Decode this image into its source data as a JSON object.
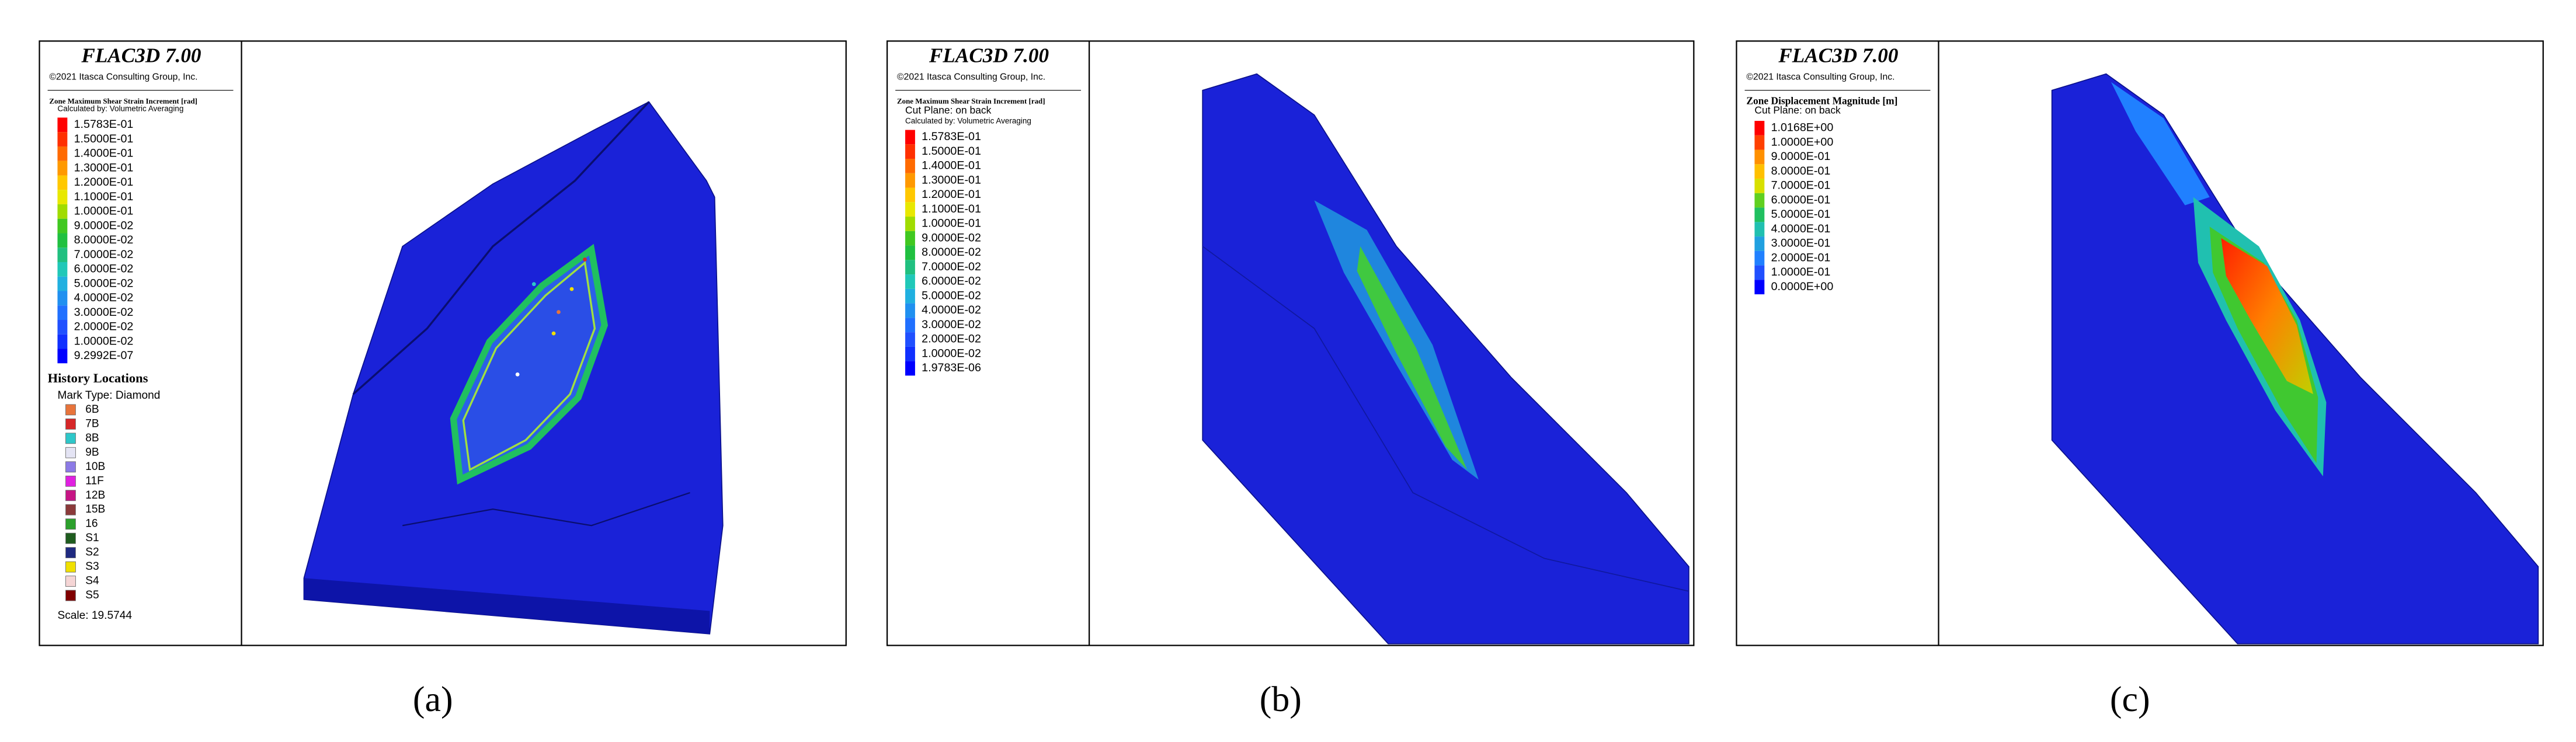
{
  "panels": [
    {
      "title": "FLAC3D 7.00",
      "copyright": "©2021 Itasca Consulting Group, Inc.",
      "legend_title": "Zone Maximum Shear Strain Increment [rad]",
      "notes": [
        "Calculated by: Volumetric Averaging"
      ],
      "legend": [
        {
          "label": "1.5783E-01",
          "color": "#ff0000"
        },
        {
          "label": "1.5000E-01",
          "color": "#ff3000"
        },
        {
          "label": "1.4000E-01",
          "color": "#ff6a00"
        },
        {
          "label": "1.3000E-01",
          "color": "#ff9900"
        },
        {
          "label": "1.2000E-01",
          "color": "#ffc800"
        },
        {
          "label": "1.1000E-01",
          "color": "#e8e800"
        },
        {
          "label": "1.0000E-01",
          "color": "#a0dc00"
        },
        {
          "label": "9.0000E-02",
          "color": "#40c820"
        },
        {
          "label": "8.0000E-02",
          "color": "#20c040"
        },
        {
          "label": "7.0000E-02",
          "color": "#20c080"
        },
        {
          "label": "6.0000E-02",
          "color": "#20c8b8"
        },
        {
          "label": "5.0000E-02",
          "color": "#20b0e0"
        },
        {
          "label": "4.0000E-02",
          "color": "#2090f0"
        },
        {
          "label": "3.0000E-02",
          "color": "#2070ff"
        },
        {
          "label": "2.0000E-02",
          "color": "#2050ff"
        },
        {
          "label": "1.0000E-02",
          "color": "#1030ff"
        },
        {
          "label": "9.2992E-07",
          "color": "#0000ff"
        }
      ],
      "history": {
        "title": "History Locations",
        "mark_type": "Mark Type: Diamond",
        "items": [
          {
            "label": "6B",
            "color": "#e8743b"
          },
          {
            "label": "7B",
            "color": "#d62728"
          },
          {
            "label": "8B",
            "color": "#2ec7c9"
          },
          {
            "label": "9B",
            "color": "#e4e4f4"
          },
          {
            "label": "10B",
            "color": "#8c7ae6"
          },
          {
            "label": "11F",
            "color": "#e020e0"
          },
          {
            "label": "12B",
            "color": "#c71585"
          },
          {
            "label": "15B",
            "color": "#8b3a3a"
          },
          {
            "label": "16",
            "color": "#2ca02c"
          },
          {
            "label": "S1",
            "color": "#1e5c1e"
          },
          {
            "label": "S2",
            "color": "#1f2a80"
          },
          {
            "label": "S3",
            "color": "#f0e000"
          },
          {
            "label": "S4",
            "color": "#f5d5d5"
          },
          {
            "label": "S5",
            "color": "#800000"
          }
        ]
      },
      "scale": "Scale: 19.5744",
      "caption": "(a)"
    },
    {
      "title": "FLAC3D 7.00",
      "copyright": "©2021 Itasca Consulting Group, Inc.",
      "legend_title": "Zone Maximum Shear Strain Increment [rad]",
      "notes": [
        "Cut Plane: on back",
        "Calculated by: Volumetric Averaging"
      ],
      "legend": [
        {
          "label": "1.5783E-01",
          "color": "#ff0000"
        },
        {
          "label": "1.5000E-01",
          "color": "#ff3000"
        },
        {
          "label": "1.4000E-01",
          "color": "#ff6a00"
        },
        {
          "label": "1.3000E-01",
          "color": "#ff9900"
        },
        {
          "label": "1.2000E-01",
          "color": "#ffc800"
        },
        {
          "label": "1.1000E-01",
          "color": "#e8e800"
        },
        {
          "label": "1.0000E-01",
          "color": "#a0dc00"
        },
        {
          "label": "9.0000E-02",
          "color": "#40c820"
        },
        {
          "label": "8.0000E-02",
          "color": "#20c040"
        },
        {
          "label": "7.0000E-02",
          "color": "#20c080"
        },
        {
          "label": "6.0000E-02",
          "color": "#20c8b8"
        },
        {
          "label": "5.0000E-02",
          "color": "#20b0e0"
        },
        {
          "label": "4.0000E-02",
          "color": "#2090f0"
        },
        {
          "label": "3.0000E-02",
          "color": "#2070ff"
        },
        {
          "label": "2.0000E-02",
          "color": "#2050ff"
        },
        {
          "label": "1.0000E-02",
          "color": "#1030ff"
        },
        {
          "label": "1.9783E-06",
          "color": "#0000ff"
        }
      ],
      "caption": "(b)"
    },
    {
      "title": "FLAC3D 7.00",
      "copyright": "©2021 Itasca Consulting Group, Inc.",
      "legend_title": "Zone Displacement Magnitude [m]",
      "notes": [
        "Cut Plane: on back"
      ],
      "legend": [
        {
          "label": "1.0168E+00",
          "color": "#ff0000"
        },
        {
          "label": "1.0000E+00",
          "color": "#ff4000"
        },
        {
          "label": "9.0000E-01",
          "color": "#ff9000"
        },
        {
          "label": "8.0000E-01",
          "color": "#ffc000"
        },
        {
          "label": "7.0000E-01",
          "color": "#d8e000"
        },
        {
          "label": "6.0000E-01",
          "color": "#60d020"
        },
        {
          "label": "5.0000E-01",
          "color": "#20c060"
        },
        {
          "label": "4.0000E-01",
          "color": "#20c0b0"
        },
        {
          "label": "3.0000E-01",
          "color": "#20a0e0"
        },
        {
          "label": "2.0000E-01",
          "color": "#2080ff"
        },
        {
          "label": "1.0000E-01",
          "color": "#2050ff"
        },
        {
          "label": "0.0000E+00",
          "color": "#0000ff"
        }
      ],
      "caption": "(c)"
    }
  ]
}
